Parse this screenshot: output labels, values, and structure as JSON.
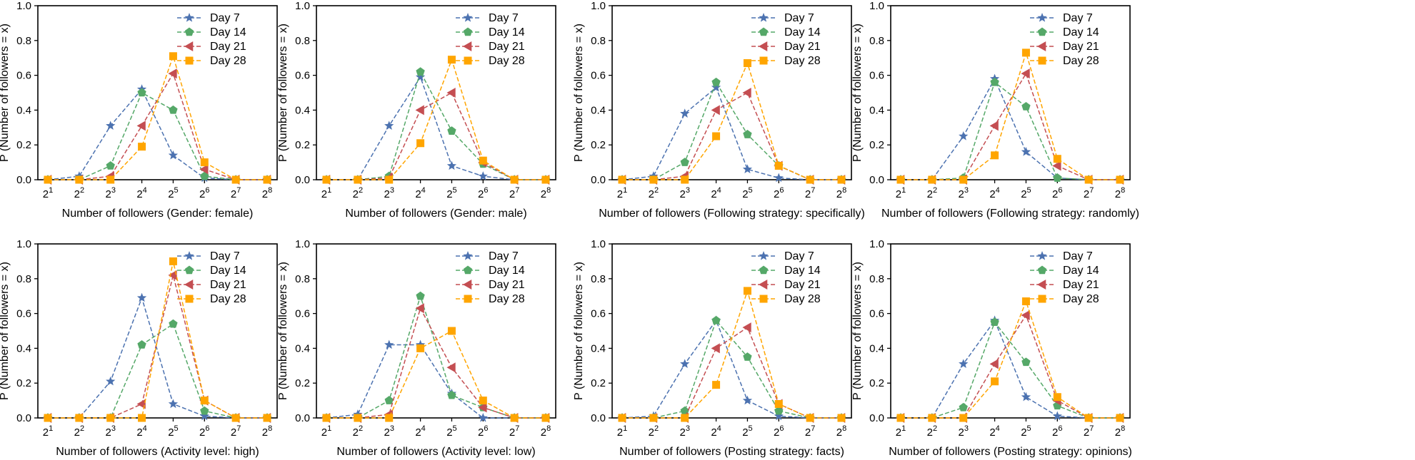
{
  "chart_data": [
    {
      "type": "line",
      "xlabel": "Number of followers (Gender: female)",
      "ylabel": "P (Number of followers = x)",
      "x": [
        "2^1",
        "2^2",
        "2^3",
        "2^4",
        "2^5",
        "2^6",
        "2^7",
        "2^8"
      ],
      "ylim": [
        0,
        1.0
      ],
      "yticks": [
        "0.0",
        "0.2",
        "0.4",
        "0.6",
        "0.8",
        "1.0"
      ],
      "legend_position": "top-right",
      "series": [
        {
          "name": "Day 7",
          "values": [
            0.0,
            0.02,
            0.31,
            0.52,
            0.14,
            0.01,
            0.0,
            0.0
          ]
        },
        {
          "name": "Day 14",
          "values": [
            0.0,
            0.0,
            0.08,
            0.5,
            0.4,
            0.02,
            0.0,
            0.0
          ]
        },
        {
          "name": "Day 21",
          "values": [
            0.0,
            0.0,
            0.02,
            0.31,
            0.61,
            0.06,
            0.0,
            0.0
          ]
        },
        {
          "name": "Day 28",
          "values": [
            0.0,
            0.0,
            0.0,
            0.19,
            0.71,
            0.1,
            0.0,
            0.0
          ]
        }
      ]
    },
    {
      "type": "line",
      "xlabel": "Number of followers (Gender: male)",
      "ylabel": "P (Number of followers = x)",
      "x": [
        "2^1",
        "2^2",
        "2^3",
        "2^4",
        "2^5",
        "2^6",
        "2^7",
        "2^8"
      ],
      "ylim": [
        0,
        1.0
      ],
      "yticks": [
        "0.0",
        "0.2",
        "0.4",
        "0.6",
        "0.8",
        "1.0"
      ],
      "legend_position": "top-right",
      "series": [
        {
          "name": "Day 7",
          "values": [
            0.0,
            0.0,
            0.31,
            0.59,
            0.08,
            0.02,
            0.0,
            0.0
          ]
        },
        {
          "name": "Day 14",
          "values": [
            0.0,
            0.0,
            0.02,
            0.62,
            0.28,
            0.09,
            0.0,
            0.0
          ]
        },
        {
          "name": "Day 21",
          "values": [
            0.0,
            0.0,
            0.01,
            0.4,
            0.5,
            0.1,
            0.0,
            0.0
          ]
        },
        {
          "name": "Day 28",
          "values": [
            0.0,
            0.0,
            0.0,
            0.21,
            0.69,
            0.11,
            0.0,
            0.0
          ]
        }
      ]
    },
    {
      "type": "line",
      "xlabel": "Number of followers (Following strategy: specifically)",
      "ylabel": "P (Number of followers = x)",
      "x": [
        "2^1",
        "2^2",
        "2^3",
        "2^4",
        "2^5",
        "2^6",
        "2^7",
        "2^8"
      ],
      "ylim": [
        0,
        1.0
      ],
      "yticks": [
        "0.0",
        "0.2",
        "0.4",
        "0.6",
        "0.8",
        "1.0"
      ],
      "legend_position": "top-right",
      "series": [
        {
          "name": "Day 7",
          "values": [
            0.0,
            0.02,
            0.38,
            0.53,
            0.06,
            0.01,
            0.0,
            0.0
          ]
        },
        {
          "name": "Day 14",
          "values": [
            0.0,
            0.0,
            0.1,
            0.56,
            0.26,
            0.08,
            0.0,
            0.0
          ]
        },
        {
          "name": "Day 21",
          "values": [
            0.0,
            0.0,
            0.02,
            0.4,
            0.5,
            0.08,
            0.0,
            0.0
          ]
        },
        {
          "name": "Day 28",
          "values": [
            0.0,
            0.0,
            0.0,
            0.25,
            0.67,
            0.08,
            0.0,
            0.0
          ]
        }
      ]
    },
    {
      "type": "line",
      "xlabel": "Number of followers (Following strategy: randomly)",
      "ylabel": "P (Number of followers = x)",
      "x": [
        "2^1",
        "2^2",
        "2^3",
        "2^4",
        "2^5",
        "2^6",
        "2^7",
        "2^8"
      ],
      "ylim": [
        0,
        1.0
      ],
      "yticks": [
        "0.0",
        "0.2",
        "0.4",
        "0.6",
        "0.8",
        "1.0"
      ],
      "legend_position": "top-right",
      "series": [
        {
          "name": "Day 7",
          "values": [
            0.0,
            0.0,
            0.25,
            0.58,
            0.16,
            0.01,
            0.0,
            0.0
          ]
        },
        {
          "name": "Day 14",
          "values": [
            0.0,
            0.0,
            0.01,
            0.56,
            0.42,
            0.01,
            0.0,
            0.0
          ]
        },
        {
          "name": "Day 21",
          "values": [
            0.0,
            0.0,
            0.0,
            0.31,
            0.61,
            0.08,
            0.0,
            0.0
          ]
        },
        {
          "name": "Day 28",
          "values": [
            0.0,
            0.0,
            0.0,
            0.14,
            0.73,
            0.12,
            0.0,
            0.0
          ]
        }
      ]
    },
    {
      "type": "line",
      "xlabel": "Number of followers (Activity level: high)",
      "ylabel": "P (Number of followers = x)",
      "x": [
        "2^1",
        "2^2",
        "2^3",
        "2^4",
        "2^5",
        "2^6",
        "2^7",
        "2^8"
      ],
      "ylim": [
        0,
        1.0
      ],
      "yticks": [
        "0.0",
        "0.2",
        "0.4",
        "0.6",
        "0.8",
        "1.0"
      ],
      "legend_position": "top-right",
      "series": [
        {
          "name": "Day 7",
          "values": [
            0.0,
            0.0,
            0.21,
            0.69,
            0.08,
            0.01,
            0.0,
            0.0
          ]
        },
        {
          "name": "Day 14",
          "values": [
            0.0,
            0.0,
            0.0,
            0.42,
            0.54,
            0.04,
            0.0,
            0.0
          ]
        },
        {
          "name": "Day 21",
          "values": [
            0.0,
            0.0,
            0.0,
            0.08,
            0.82,
            0.1,
            0.0,
            0.0
          ]
        },
        {
          "name": "Day 28",
          "values": [
            0.0,
            0.0,
            0.0,
            0.0,
            0.9,
            0.1,
            0.0,
            0.0
          ]
        }
      ]
    },
    {
      "type": "line",
      "xlabel": "Number of followers (Activity level: low)",
      "ylabel": "P (Number of followers = x)",
      "x": [
        "2^1",
        "2^2",
        "2^3",
        "2^4",
        "2^5",
        "2^6",
        "2^7",
        "2^8"
      ],
      "ylim": [
        0,
        1.0
      ],
      "yticks": [
        "0.0",
        "0.2",
        "0.4",
        "0.6",
        "0.8",
        "1.0"
      ],
      "legend_position": "top-right",
      "series": [
        {
          "name": "Day 7",
          "values": [
            0.0,
            0.02,
            0.42,
            0.42,
            0.14,
            0.0,
            0.0,
            0.0
          ]
        },
        {
          "name": "Day 14",
          "values": [
            0.0,
            0.0,
            0.1,
            0.7,
            0.13,
            0.06,
            0.0,
            0.0
          ]
        },
        {
          "name": "Day 21",
          "values": [
            0.0,
            0.0,
            0.02,
            0.63,
            0.29,
            0.06,
            0.0,
            0.0
          ]
        },
        {
          "name": "Day 28",
          "values": [
            0.0,
            0.0,
            0.0,
            0.4,
            0.5,
            0.1,
            0.0,
            0.0
          ]
        }
      ]
    },
    {
      "type": "line",
      "xlabel": "Number of followers (Posting strategy: facts)",
      "ylabel": "P (Number of followers = x)",
      "x": [
        "2^1",
        "2^2",
        "2^3",
        "2^4",
        "2^5",
        "2^6",
        "2^7",
        "2^8"
      ],
      "ylim": [
        0,
        1.0
      ],
      "yticks": [
        "0.0",
        "0.2",
        "0.4",
        "0.6",
        "0.8",
        "1.0"
      ],
      "legend_position": "top-right",
      "series": [
        {
          "name": "Day 7",
          "values": [
            0.0,
            0.01,
            0.31,
            0.56,
            0.1,
            0.01,
            0.0,
            0.0
          ]
        },
        {
          "name": "Day 14",
          "values": [
            0.0,
            0.0,
            0.04,
            0.56,
            0.35,
            0.04,
            0.0,
            0.0
          ]
        },
        {
          "name": "Day 21",
          "values": [
            0.0,
            0.0,
            0.0,
            0.4,
            0.52,
            0.08,
            0.0,
            0.0
          ]
        },
        {
          "name": "Day 28",
          "values": [
            0.0,
            0.0,
            0.0,
            0.19,
            0.73,
            0.08,
            0.0,
            0.0
          ]
        }
      ]
    },
    {
      "type": "line",
      "xlabel": "Number of followers (Posting strategy: opinions)",
      "ylabel": "P (Number of followers = x)",
      "x": [
        "2^1",
        "2^2",
        "2^3",
        "2^4",
        "2^5",
        "2^6",
        "2^7",
        "2^8"
      ],
      "ylim": [
        0,
        1.0
      ],
      "yticks": [
        "0.0",
        "0.2",
        "0.4",
        "0.6",
        "0.8",
        "1.0"
      ],
      "legend_position": "top-right",
      "series": [
        {
          "name": "Day 7",
          "values": [
            0.0,
            0.0,
            0.31,
            0.56,
            0.12,
            0.01,
            0.0,
            0.0
          ]
        },
        {
          "name": "Day 14",
          "values": [
            0.0,
            0.0,
            0.06,
            0.55,
            0.32,
            0.07,
            0.0,
            0.0
          ]
        },
        {
          "name": "Day 21",
          "values": [
            0.0,
            0.0,
            0.0,
            0.31,
            0.59,
            0.1,
            0.0,
            0.0
          ]
        },
        {
          "name": "Day 28",
          "values": [
            0.0,
            0.0,
            0.0,
            0.21,
            0.67,
            0.12,
            0.0,
            0.0
          ]
        }
      ]
    }
  ],
  "style": {
    "series_colors": [
      "#4c72b0",
      "#55a868",
      "#c44e52",
      "#ffa500"
    ],
    "series_markers": [
      "star",
      "pentagon",
      "triangle-left",
      "square"
    ],
    "axis_color": "#000000"
  }
}
